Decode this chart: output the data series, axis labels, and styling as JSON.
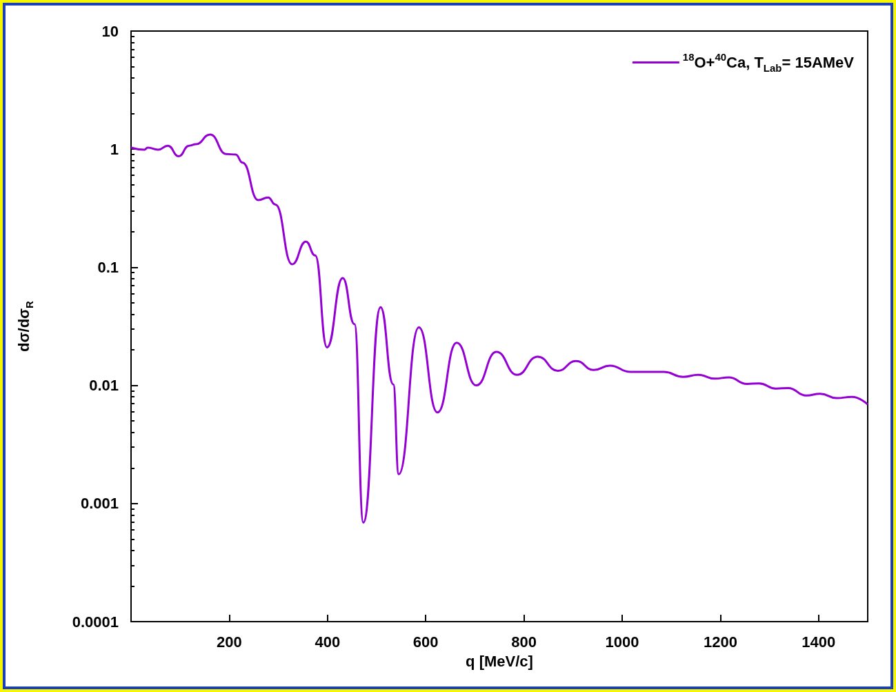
{
  "chart_data": {
    "type": "line",
    "xlabel": "q [MeV/c]",
    "ylabel": "dσ/dσ$_{R}$",
    "x": [
      0,
      27,
      34,
      55,
      75,
      97,
      118,
      132,
      161,
      194,
      213,
      227,
      259,
      279,
      294,
      328,
      356,
      375,
      399,
      431,
      455,
      473,
      508,
      534,
      545,
      586,
      624,
      663,
      703,
      744,
      786,
      828,
      869,
      906,
      942,
      975,
      1017,
      1085,
      1124,
      1155,
      1189,
      1217,
      1254,
      1279,
      1313,
      1338,
      1375,
      1403,
      1437,
      1468,
      1500
    ],
    "series": [
      {
        "name": "$^{18}$O+$^{40}$Ca, T$_{Lab}$= 15AMeV",
        "color": "#9400d3",
        "values": [
          1.03,
          0.99,
          1.03,
          0.99,
          1.07,
          0.87,
          1.07,
          1.1,
          1.33,
          0.91,
          0.9,
          0.77,
          0.37,
          0.39,
          0.34,
          0.106,
          0.165,
          0.126,
          0.021,
          0.081,
          0.033,
          0.00069,
          0.046,
          0.0102,
          0.00177,
          0.031,
          0.0059,
          0.023,
          0.01,
          0.0192,
          0.0123,
          0.0175,
          0.0133,
          0.0161,
          0.0135,
          0.0147,
          0.013,
          0.013,
          0.0118,
          0.0123,
          0.0114,
          0.0117,
          0.0103,
          0.0104,
          0.0094,
          0.0095,
          0.0082,
          0.0085,
          0.0078,
          0.008,
          0.0069
        ]
      }
    ],
    "log": "y",
    "xlim": [
      0,
      1500
    ],
    "xticks": [
      200,
      400,
      600,
      800,
      1000,
      1200,
      1400
    ],
    "ylim": [
      0.0001,
      10
    ],
    "yticks": [
      0.0001,
      0.001,
      0.01,
      0.1,
      1,
      10
    ],
    "legend": "top right",
    "grid": false,
    "marker": "none",
    "line_style": "solid"
  }
}
